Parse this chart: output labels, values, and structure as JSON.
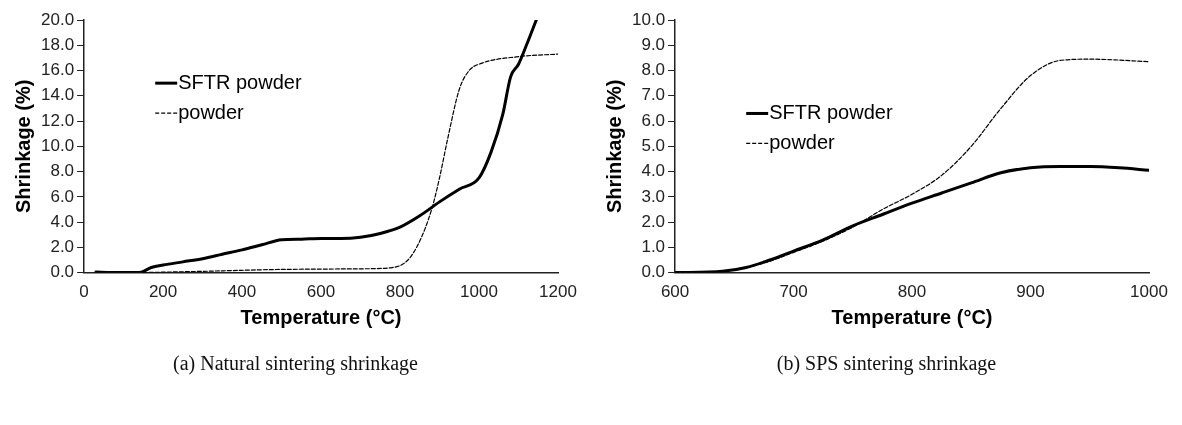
{
  "chart_data": [
    {
      "type": "line",
      "xlabel": "Temperature (°C)",
      "ylabel": "Shrinkage (%)",
      "legend": "top left",
      "grid": false,
      "marker": "none",
      "xlim": [
        0,
        1200
      ],
      "xticks": [
        0,
        200,
        400,
        600,
        800,
        1000,
        1200
      ],
      "ylim": [
        0,
        20
      ],
      "yticks": [
        {
          "value": 0,
          "label": "0.0"
        },
        {
          "value": 2,
          "label": "2.0"
        },
        {
          "value": 4,
          "label": "4.0"
        },
        {
          "value": 6,
          "label": "6.0"
        },
        {
          "value": 8,
          "label": "8.0"
        },
        {
          "value": 10,
          "label": "10.0"
        },
        {
          "value": 12,
          "label": "12.0"
        },
        {
          "value": 14,
          "label": "14.0"
        },
        {
          "value": 16,
          "label": "16.0"
        },
        {
          "value": 18,
          "label": "18.0"
        },
        {
          "value": 20,
          "label": "20.0"
        }
      ],
      "annotations": [
        "(a) Natural sintering shrinkage"
      ],
      "series": [
        {
          "name": "SFTR powder",
          "color": "#000000",
          "line_style": "solid",
          "x": [
            30,
            70,
            140,
            170,
            200,
            250,
            300,
            350,
            400,
            450,
            500,
            550,
            600,
            650,
            700,
            750,
            800,
            850,
            900,
            950,
            1000,
            1030,
            1060,
            1080,
            1100,
            1120,
            1145
          ],
          "values": [
            0.05,
            0,
            0,
            0.4,
            0.6,
            0.85,
            1.1,
            1.45,
            1.8,
            2.2,
            2.6,
            2.65,
            2.7,
            2.7,
            2.8,
            3.1,
            3.6,
            4.5,
            5.6,
            6.6,
            7.5,
            9.5,
            12.5,
            15.5,
            16.5,
            18,
            20
          ]
        },
        {
          "name": "powder",
          "color": "#000000",
          "line_style": "dashed",
          "x": [
            150,
            300,
            500,
            700,
            780,
            820,
            850,
            880,
            900,
            920,
            950,
            975,
            1000,
            1100,
            1200
          ],
          "values": [
            0,
            0.1,
            0.25,
            0.3,
            0.4,
            1,
            2.5,
            5,
            7.5,
            10.5,
            14.5,
            16,
            16.5,
            17.1,
            17.3
          ]
        }
      ]
    },
    {
      "type": "line",
      "xlabel": "Temperature (°C)",
      "ylabel": "Shrinkage (%)",
      "legend": "left",
      "grid": false,
      "marker": "none",
      "xlim": [
        600,
        1000
      ],
      "xticks": [
        600,
        700,
        800,
        900,
        1000
      ],
      "ylim": [
        0,
        10
      ],
      "yticks": [
        {
          "value": 0,
          "label": "0.0"
        },
        {
          "value": 1,
          "label": "1.0"
        },
        {
          "value": 2,
          "label": "2.0"
        },
        {
          "value": 3,
          "label": "3.0"
        },
        {
          "value": 4,
          "label": "4.0"
        },
        {
          "value": 5,
          "label": "5.0"
        },
        {
          "value": 6,
          "label": "6.0"
        },
        {
          "value": 7,
          "label": "7.0"
        },
        {
          "value": 8,
          "label": "8.0"
        },
        {
          "value": 9,
          "label": "9.0"
        },
        {
          "value": 10,
          "label": "10.0"
        }
      ],
      "annotations": [
        "(b) SPS sintering shrinkage"
      ],
      "series": [
        {
          "name": "SFTR powder",
          "color": "#000000",
          "line_style": "solid",
          "x": [
            600,
            640,
            660,
            680,
            700,
            725,
            750,
            775,
            800,
            825,
            850,
            875,
            900,
            925,
            950,
            975,
            1000
          ],
          "values": [
            0,
            0.05,
            0.2,
            0.5,
            0.85,
            1.3,
            1.85,
            2.3,
            2.75,
            3.15,
            3.55,
            3.95,
            4.15,
            4.2,
            4.2,
            4.15,
            4.05
          ]
        },
        {
          "name": "powder",
          "color": "#000000",
          "line_style": "dashed",
          "x": [
            600,
            640,
            660,
            680,
            700,
            725,
            750,
            775,
            800,
            825,
            850,
            875,
            900,
            925,
            950,
            1000
          ],
          "values": [
            0,
            0.05,
            0.2,
            0.45,
            0.8,
            1.25,
            1.8,
            2.5,
            3.1,
            3.85,
            5.0,
            6.5,
            7.8,
            8.4,
            8.45,
            8.35
          ]
        }
      ]
    }
  ]
}
